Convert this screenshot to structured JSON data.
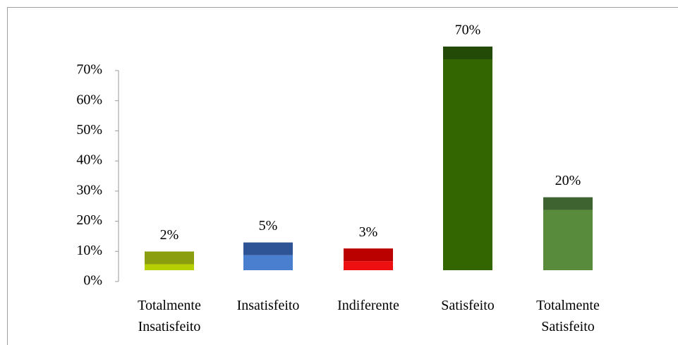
{
  "chart_data": {
    "type": "bar",
    "categories": [
      "Totalmente Insatisfeito",
      "Insatisfeito",
      "Indiferente",
      "Satisfeito",
      "Totalmente Satisfeito"
    ],
    "values": [
      2,
      5,
      3,
      70,
      20
    ],
    "value_labels": [
      "2%",
      "5%",
      "3%",
      "70%",
      "20%"
    ],
    "colors": [
      "#b5cf00",
      "#4a7fd0",
      "#ee1010",
      "#336600",
      "#588c3c"
    ],
    "top_colors": [
      "#8a9e10",
      "#2f5496",
      "#bb0000",
      "#244a08",
      "#3f6330"
    ],
    "ylim": [
      0,
      70
    ],
    "yticks": [
      {
        "value": 0,
        "label": "0%"
      },
      {
        "value": 10,
        "label": "10%"
      },
      {
        "value": 20,
        "label": "20%"
      },
      {
        "value": 30,
        "label": "30%"
      },
      {
        "value": 40,
        "label": "40%"
      },
      {
        "value": 50,
        "label": "50%"
      },
      {
        "value": 60,
        "label": "60%"
      },
      {
        "value": 70,
        "label": "70%"
      }
    ]
  }
}
